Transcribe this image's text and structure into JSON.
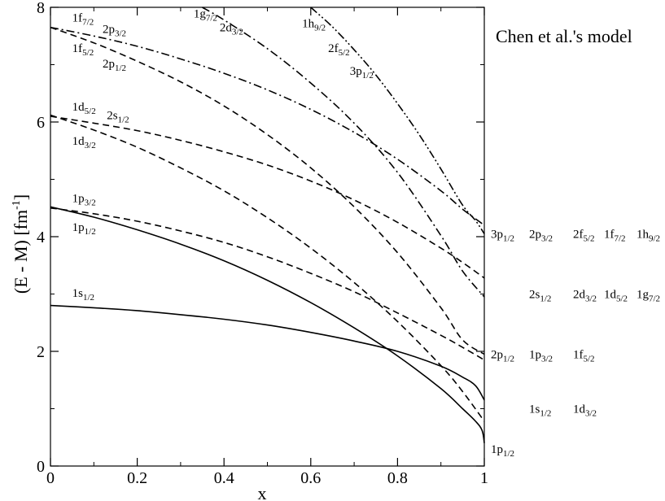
{
  "chart_data": {
    "type": "line",
    "title": "",
    "annotation": "Chen et al.'s model",
    "xlabel": "x",
    "ylabel": "(E - M)",
    "ylabel_unit": "[fm",
    "ylabel_unit_exp": "-1",
    "ylabel_unit_close": "]",
    "xlim": [
      0,
      1
    ],
    "ylim": [
      0,
      8
    ],
    "xticks": [
      0,
      0.2,
      0.4,
      0.6,
      0.8,
      1
    ],
    "yticks": [
      0,
      2,
      4,
      6,
      8
    ],
    "xtick_labels": [
      "0",
      "0.2",
      "0.4",
      "0.6",
      "0.8",
      "1"
    ],
    "ytick_labels": [
      "0",
      "2",
      "4",
      "6",
      "8"
    ],
    "grid": false,
    "series": [
      {
        "style": "solid",
        "x": [
          0,
          0.1,
          0.2,
          0.3,
          0.4,
          0.5,
          0.6,
          0.7,
          0.8,
          0.9,
          0.95,
          0.98,
          1.0
        ],
        "y": [
          2.8,
          2.76,
          2.71,
          2.64,
          2.56,
          2.46,
          2.33,
          2.18,
          2.0,
          1.74,
          1.55,
          1.4,
          1.15
        ]
      },
      {
        "style": "solid",
        "x": [
          0,
          0.1,
          0.2,
          0.3,
          0.4,
          0.5,
          0.6,
          0.7,
          0.8,
          0.9,
          0.95,
          0.98,
          0.995,
          1.0
        ],
        "y": [
          4.52,
          4.34,
          4.12,
          3.87,
          3.58,
          3.24,
          2.85,
          2.41,
          1.92,
          1.35,
          1.0,
          0.78,
          0.62,
          0.4
        ]
      },
      {
        "style": "dashed",
        "x": [
          0,
          0.1,
          0.2,
          0.3,
          0.4,
          0.5,
          0.6,
          0.7,
          0.8,
          0.9,
          0.95,
          1.0
        ],
        "y": [
          4.5,
          4.4,
          4.27,
          4.1,
          3.9,
          3.65,
          3.36,
          3.04,
          2.67,
          2.28,
          2.07,
          1.85
        ]
      },
      {
        "style": "dashed",
        "x": [
          0,
          0.1,
          0.2,
          0.3,
          0.4,
          0.5,
          0.6,
          0.7,
          0.8,
          0.9,
          0.95,
          1.0
        ],
        "y": [
          6.12,
          5.86,
          5.56,
          5.2,
          4.8,
          4.33,
          3.8,
          3.2,
          2.52,
          1.75,
          1.3,
          0.78
        ]
      },
      {
        "style": "dashed",
        "x": [
          0,
          0.1,
          0.2,
          0.3,
          0.4,
          0.5,
          0.6,
          0.7,
          0.8,
          0.9,
          0.95,
          1.0
        ],
        "y": [
          6.1,
          5.98,
          5.85,
          5.68,
          5.48,
          5.25,
          4.97,
          4.64,
          4.25,
          3.8,
          3.55,
          3.28
        ]
      },
      {
        "style": "dashed",
        "x": [
          0,
          0.1,
          0.2,
          0.3,
          0.4,
          0.5,
          0.6,
          0.7,
          0.8,
          0.9,
          0.95,
          1.0
        ],
        "y": [
          7.65,
          7.38,
          7.06,
          6.7,
          6.28,
          5.78,
          5.2,
          4.52,
          3.72,
          2.76,
          2.2,
          1.95
        ]
      },
      {
        "style": "dashdot",
        "x": [
          0,
          0.1,
          0.2,
          0.3,
          0.4,
          0.5,
          0.6,
          0.7,
          0.8,
          0.9,
          0.95,
          1.0
        ],
        "y": [
          7.65,
          7.5,
          7.32,
          7.1,
          6.85,
          6.56,
          6.22,
          5.82,
          5.35,
          4.8,
          4.48,
          4.2
        ]
      },
      {
        "style": "dashdot",
        "x": [
          0.35,
          0.4,
          0.5,
          0.6,
          0.7,
          0.8,
          0.9,
          0.95,
          1.0
        ],
        "y": [
          8.0,
          7.78,
          7.28,
          6.68,
          5.98,
          5.12,
          4.02,
          3.4,
          2.95
        ]
      },
      {
        "style": "dashdotdot",
        "x": [
          0.6,
          0.65,
          0.7,
          0.75,
          0.8,
          0.85,
          0.9,
          0.95,
          0.98,
          1.0
        ],
        "y": [
          8.0,
          7.66,
          7.26,
          6.82,
          6.32,
          5.78,
          5.18,
          4.55,
          4.28,
          4.05
        ]
      }
    ],
    "curve_labels": [
      {
        "text": "1s",
        "sub": "1/2",
        "x": 0.05,
        "y": 2.95
      },
      {
        "text": "1p",
        "sub": "3/2",
        "x": 0.05,
        "y": 4.6
      },
      {
        "text": "1p",
        "sub": "1/2",
        "x": 0.05,
        "y": 4.1
      },
      {
        "text": "1d",
        "sub": "5/2",
        "x": 0.05,
        "y": 6.2
      },
      {
        "text": "2s",
        "sub": "1/2",
        "x": 0.13,
        "y": 6.05
      },
      {
        "text": "1d",
        "sub": "3/2",
        "x": 0.05,
        "y": 5.6
      },
      {
        "text": "1f",
        "sub": "7/2",
        "x": 0.05,
        "y": 7.75
      },
      {
        "text": "2p",
        "sub": "3/2",
        "x": 0.12,
        "y": 7.55
      },
      {
        "text": "1f",
        "sub": "5/2",
        "x": 0.05,
        "y": 7.22
      },
      {
        "text": "2p",
        "sub": "1/2",
        "x": 0.12,
        "y": 6.95
      },
      {
        "text": "1g",
        "sub": "7/2",
        "x": 0.33,
        "y": 7.82
      },
      {
        "text": "2d",
        "sub": "3/2",
        "x": 0.39,
        "y": 7.58
      },
      {
        "text": "1h",
        "sub": "9/2",
        "x": 0.58,
        "y": 7.65
      },
      {
        "text": "2f",
        "sub": "5/2",
        "x": 0.64,
        "y": 7.22
      },
      {
        "text": "3p",
        "sub": "1/2",
        "x": 0.69,
        "y": 6.82
      }
    ],
    "limit_labels": [
      {
        "parts": [
          {
            "text": "3p",
            "sub": "1/2",
            "col": 0
          },
          {
            "text": "2p",
            "sub": "3/2",
            "col": 1
          },
          {
            "text": "2f",
            "sub": "5/2",
            "col": 2
          },
          {
            "text": "1f",
            "sub": "7/2",
            "col": 3
          },
          {
            "text": "1h",
            "sub": "9/2",
            "col": 4
          }
        ],
        "y": 4.05
      },
      {
        "parts": [
          {
            "text": "2s",
            "sub": "1/2",
            "col": 1
          },
          {
            "text": "2d",
            "sub": "3/2",
            "col": 2
          },
          {
            "text": "1d",
            "sub": "5/2",
            "col": 3
          },
          {
            "text": "1g",
            "sub": "7/2",
            "col": 4
          }
        ],
        "y": 3.0
      },
      {
        "parts": [
          {
            "text": "2p",
            "sub": "1/2",
            "col": 0
          },
          {
            "text": "1p",
            "sub": "3/2",
            "col": 1
          },
          {
            "text": "1f",
            "sub": "5/2",
            "col": 2
          }
        ],
        "y": 1.95
      },
      {
        "parts": [
          {
            "text": "1s",
            "sub": "1/2",
            "col": 1
          },
          {
            "text": "1d",
            "sub": "3/2",
            "col": 2
          }
        ],
        "y": 1.0
      },
      {
        "parts": [
          {
            "text": "1p",
            "sub": "1/2",
            "col": 0
          }
        ],
        "y": 0.3
      }
    ]
  }
}
